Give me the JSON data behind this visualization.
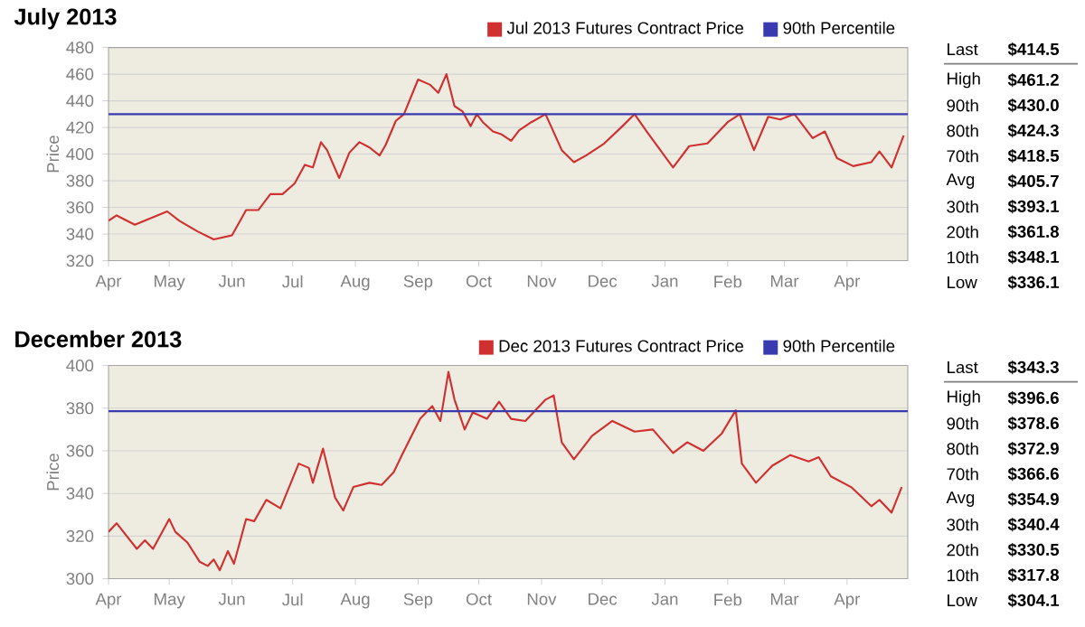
{
  "chart_data": [
    {
      "type": "line",
      "title": "July 2013",
      "ylabel": "Price",
      "x": [
        "2012-04-01",
        "2012-04-05",
        "2012-04-14",
        "2012-04-30",
        "2012-05-06",
        "2012-05-15",
        "2012-05-23",
        "2012-06-01",
        "2012-06-08",
        "2012-06-14",
        "2012-06-20",
        "2012-06-26",
        "2012-07-02",
        "2012-07-07",
        "2012-07-11",
        "2012-07-15",
        "2012-07-18",
        "2012-07-24",
        "2012-07-29",
        "2012-08-03",
        "2012-08-08",
        "2012-08-13",
        "2012-08-16",
        "2012-08-21",
        "2012-08-25",
        "2012-09-01",
        "2012-09-07",
        "2012-09-11",
        "2012-09-15",
        "2012-09-19",
        "2012-09-23",
        "2012-09-27",
        "2012-09-30",
        "2012-10-03",
        "2012-10-08",
        "2012-10-12",
        "2012-10-17",
        "2012-10-21",
        "2012-10-27",
        "2012-11-03",
        "2012-11-11",
        "2012-11-17",
        "2012-11-23",
        "2012-12-02",
        "2012-12-11",
        "2012-12-17",
        "2012-12-23",
        "2013-01-05",
        "2013-01-13",
        "2013-01-22",
        "2013-02-01",
        "2013-02-07",
        "2013-02-14",
        "2013-02-21",
        "2013-02-27",
        "2013-03-06",
        "2013-03-15",
        "2013-03-21",
        "2013-03-27",
        "2013-04-04",
        "2013-04-13",
        "2013-04-17",
        "2013-04-23",
        "2013-04-29"
      ],
      "series": [
        {
          "name": "Jul 2013 Futures Contract Price",
          "color": "#d03030",
          "values": [
            350,
            354,
            347,
            357,
            350,
            342,
            336,
            339,
            358,
            358,
            370,
            370,
            378,
            392,
            390,
            409,
            403,
            382,
            401,
            409,
            405,
            399,
            407,
            425,
            430,
            456,
            452,
            446,
            460,
            436,
            432,
            421,
            430,
            424,
            417,
            415,
            410,
            418,
            424,
            430,
            403,
            394,
            399,
            408,
            421,
            430,
            417,
            390,
            406,
            408,
            424,
            430,
            403,
            428,
            426,
            430,
            412,
            417,
            397,
            391,
            394,
            402,
            390,
            414
          ]
        }
      ],
      "xlim": [
        "2012-04-01",
        "2013-05-01"
      ],
      "xticks": [
        {
          "value": "2012-04-01",
          "label": "Apr"
        },
        {
          "value": "2012-05-01",
          "label": "May"
        },
        {
          "value": "2012-06-01",
          "label": "Jun"
        },
        {
          "value": "2012-07-01",
          "label": "Jul"
        },
        {
          "value": "2012-08-01",
          "label": "Aug"
        },
        {
          "value": "2012-09-01",
          "label": "Sep"
        },
        {
          "value": "2012-10-01",
          "label": "Oct"
        },
        {
          "value": "2012-11-01",
          "label": "Nov"
        },
        {
          "value": "2012-12-01",
          "label": "Dec"
        },
        {
          "value": "2013-01-01",
          "label": "Jan"
        },
        {
          "value": "2013-02-01",
          "label": "Feb"
        },
        {
          "value": "2013-03-01",
          "label": "Mar"
        },
        {
          "value": "2013-04-01",
          "label": "Apr"
        }
      ],
      "ylim": [
        320,
        480
      ],
      "yticks": [
        320,
        340,
        360,
        380,
        400,
        420,
        440,
        460,
        480
      ],
      "grid": "y",
      "legend": "top right",
      "ref_lines": [
        {
          "axis": "y",
          "value": 430,
          "label": "90th Percentile",
          "color": "#3a3ab0"
        }
      ],
      "annotations": [
        "Last",
        "$414.5",
        "High",
        "$461.2",
        "90th",
        "$430.0",
        "80th",
        "$424.3",
        "70th",
        "$418.5",
        "Avg",
        "$405.7",
        "30th",
        "$393.1",
        "20th",
        "$361.8",
        "10th",
        "$348.1",
        "Low",
        "$336.1"
      ]
    },
    {
      "type": "line",
      "title": "December 2013",
      "ylabel": "Price",
      "x": [
        "2012-04-01",
        "2012-04-05",
        "2012-04-15",
        "2012-04-19",
        "2012-04-23",
        "2012-05-01",
        "2012-05-04",
        "2012-05-10",
        "2012-05-16",
        "2012-05-20",
        "2012-05-23",
        "2012-05-26",
        "2012-05-30",
        "2012-06-02",
        "2012-06-08",
        "2012-06-12",
        "2012-06-18",
        "2012-06-25",
        "2012-07-04",
        "2012-07-09",
        "2012-07-11",
        "2012-07-16",
        "2012-07-22",
        "2012-07-26",
        "2012-07-31",
        "2012-08-08",
        "2012-08-14",
        "2012-08-20",
        "2012-08-24",
        "2012-09-02",
        "2012-09-08",
        "2012-09-12",
        "2012-09-16",
        "2012-09-19",
        "2012-09-24",
        "2012-09-28",
        "2012-10-05",
        "2012-10-11",
        "2012-10-17",
        "2012-10-24",
        "2012-11-03",
        "2012-11-07",
        "2012-11-11",
        "2012-11-17",
        "2012-11-26",
        "2012-12-06",
        "2012-12-17",
        "2012-12-26",
        "2013-01-05",
        "2013-01-12",
        "2013-01-20",
        "2013-01-29",
        "2013-02-05",
        "2013-02-08",
        "2013-02-15",
        "2013-02-23",
        "2013-03-04",
        "2013-03-13",
        "2013-03-18",
        "2013-03-24",
        "2013-04-03",
        "2013-04-13",
        "2013-04-17",
        "2013-04-23",
        "2013-04-28"
      ],
      "series": [
        {
          "name": "Dec 2013 Futures Contract Price",
          "color": "#d03030",
          "values": [
            322,
            326,
            314,
            318,
            314,
            328,
            322,
            317,
            308,
            306,
            309,
            304,
            313,
            307,
            328,
            327,
            337,
            333,
            354,
            352,
            345,
            361,
            338,
            332,
            343,
            345,
            344,
            350,
            358,
            375,
            381,
            374,
            397,
            384,
            370,
            378,
            375,
            383,
            375,
            374,
            384,
            386,
            364,
            356,
            367,
            374,
            369,
            370,
            359,
            364,
            360,
            368,
            379,
            354,
            345,
            353,
            358,
            355,
            357,
            348,
            343,
            334,
            337,
            331,
            343
          ]
        }
      ],
      "xlim": [
        "2012-04-01",
        "2013-05-01"
      ],
      "xticks": [
        {
          "value": "2012-04-01",
          "label": "Apr"
        },
        {
          "value": "2012-05-01",
          "label": "May"
        },
        {
          "value": "2012-06-01",
          "label": "Jun"
        },
        {
          "value": "2012-07-01",
          "label": "Jul"
        },
        {
          "value": "2012-08-01",
          "label": "Aug"
        },
        {
          "value": "2012-09-01",
          "label": "Sep"
        },
        {
          "value": "2012-10-01",
          "label": "Oct"
        },
        {
          "value": "2012-11-01",
          "label": "Nov"
        },
        {
          "value": "2012-12-01",
          "label": "Dec"
        },
        {
          "value": "2013-01-01",
          "label": "Jan"
        },
        {
          "value": "2013-02-01",
          "label": "Feb"
        },
        {
          "value": "2013-03-01",
          "label": "Mar"
        },
        {
          "value": "2013-04-01",
          "label": "Apr"
        }
      ],
      "ylim": [
        300,
        400
      ],
      "yticks": [
        300,
        320,
        340,
        360,
        380,
        400
      ],
      "grid": "y",
      "legend": "top right",
      "ref_lines": [
        {
          "axis": "y",
          "value": 378.6,
          "label": "90th Percentile",
          "color": "#3a3ab0"
        }
      ],
      "annotations": [
        "Last",
        "$343.3",
        "High",
        "$396.6",
        "90th",
        "$378.6",
        "80th",
        "$372.9",
        "70th",
        "$366.6",
        "Avg",
        "$354.9",
        "30th",
        "$340.4",
        "20th",
        "$330.5",
        "10th",
        "$317.8",
        "Low",
        "$304.1"
      ]
    }
  ]
}
